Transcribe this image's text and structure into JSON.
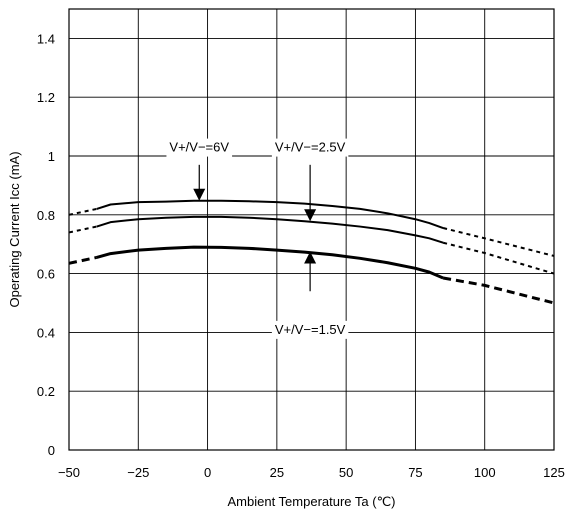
{
  "chart_data": {
    "type": "line",
    "xlabel": "Ambient Temperature Ta (℃)",
    "ylabel": "Operating Current Icc (mA)",
    "xlim": [
      -50,
      125
    ],
    "ylim": [
      0,
      1.5
    ],
    "x_ticks": [
      -50,
      -25,
      0,
      25,
      50,
      75,
      100,
      125
    ],
    "x_tick_labels": [
      "−50",
      "−25",
      "0",
      "25",
      "50",
      "75",
      "100",
      "125"
    ],
    "y_ticks": [
      0,
      0.2,
      0.4,
      0.6,
      0.8,
      1.0,
      1.2,
      1.4
    ],
    "y_tick_labels": [
      "0",
      "0.2",
      "0.4",
      "0.6",
      "0.8",
      "1",
      "1.2",
      "1.4"
    ],
    "grid": true,
    "legend": "none",
    "series": [
      {
        "label": "V+/V−=6V",
        "measured_x": [
          -40,
          -35,
          -25,
          -15,
          -5,
          5,
          15,
          25,
          35,
          45,
          55,
          65,
          75,
          80,
          85
        ],
        "measured_y": [
          0.82,
          0.835,
          0.843,
          0.845,
          0.848,
          0.848,
          0.846,
          0.843,
          0.838,
          0.83,
          0.82,
          0.805,
          0.785,
          0.772,
          0.755
        ],
        "extrapolated_x": [
          -50,
          -40,
          85,
          100,
          125
        ],
        "extrapolated_y": [
          0.8,
          0.82,
          0.755,
          0.72,
          0.66
        ]
      },
      {
        "label": "V+/V−=2.5V",
        "measured_x": [
          -40,
          -35,
          -25,
          -15,
          -5,
          5,
          15,
          25,
          35,
          45,
          55,
          65,
          75,
          80,
          85
        ],
        "measured_y": [
          0.76,
          0.775,
          0.785,
          0.79,
          0.793,
          0.793,
          0.79,
          0.785,
          0.778,
          0.77,
          0.76,
          0.748,
          0.73,
          0.72,
          0.705
        ],
        "extrapolated_x": [
          -50,
          -40,
          85,
          100,
          125
        ],
        "extrapolated_y": [
          0.74,
          0.76,
          0.705,
          0.67,
          0.6
        ]
      },
      {
        "label": "V+/V−=1.5V",
        "measured_x": [
          -40,
          -35,
          -25,
          -15,
          -5,
          5,
          15,
          25,
          35,
          45,
          55,
          65,
          75,
          80,
          85
        ],
        "measured_y": [
          0.655,
          0.668,
          0.68,
          0.686,
          0.69,
          0.689,
          0.686,
          0.68,
          0.673,
          0.664,
          0.652,
          0.637,
          0.618,
          0.605,
          0.585
        ],
        "extrapolated_x": [
          -50,
          -40,
          85,
          100,
          125
        ],
        "extrapolated_y": [
          0.635,
          0.655,
          0.585,
          0.56,
          0.5
        ]
      }
    ],
    "annotations": [
      {
        "text": "V+/V−=6V",
        "text_x": -3,
        "text_y": 1.015,
        "arrow_x": -3,
        "arrow_from_y": 0.97,
        "arrow_to_y": 0.848
      },
      {
        "text": "V+/V−=2.5V",
        "text_x": 37,
        "text_y": 1.015,
        "arrow_x": 37,
        "arrow_from_y": 0.97,
        "arrow_to_y": 0.778
      },
      {
        "text": "V+/V−=1.5V",
        "text_x": 37,
        "text_y": 0.395,
        "arrow_x": 37,
        "arrow_from_y": 0.54,
        "arrow_to_y": 0.675
      }
    ]
  }
}
